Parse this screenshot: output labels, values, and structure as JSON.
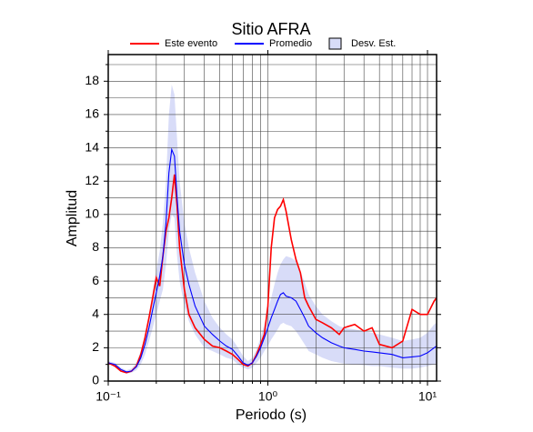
{
  "chart_data": {
    "type": "line",
    "title": "Sitio AFRA",
    "x_label": "Periodo (s)",
    "y_label": "Amplitud",
    "xscale": "log",
    "grid": true,
    "legend": "top",
    "xlim": [
      0.1,
      11.4
    ],
    "ylim": [
      0,
      19.6
    ],
    "xticks": [
      {
        "value": 0.1,
        "label": "10⁻¹"
      },
      {
        "value": 1,
        "label": "10⁰"
      },
      {
        "value": 10,
        "label": "10¹"
      }
    ],
    "xminorticks": [
      0.2,
      0.3,
      0.4,
      0.5,
      0.6,
      0.7,
      0.8,
      0.9,
      2,
      3,
      4,
      5,
      6,
      7,
      8,
      9
    ],
    "yticks": [
      0,
      2,
      4,
      6,
      8,
      10,
      12,
      14,
      16,
      18
    ],
    "yminorticks": [
      1,
      3,
      5,
      7,
      9,
      11,
      13,
      15,
      17,
      19
    ],
    "x": [
      0.1,
      0.11,
      0.12,
      0.13,
      0.14,
      0.15,
      0.16,
      0.17,
      0.18,
      0.19,
      0.2,
      0.21,
      0.22,
      0.23,
      0.24,
      0.25,
      0.26,
      0.27,
      0.28,
      0.3,
      0.32,
      0.35,
      0.4,
      0.45,
      0.5,
      0.55,
      0.6,
      0.65,
      0.7,
      0.75,
      0.8,
      0.85,
      0.9,
      0.95,
      1.0,
      1.05,
      1.1,
      1.15,
      1.2,
      1.25,
      1.3,
      1.4,
      1.5,
      1.6,
      1.7,
      1.8,
      2.0,
      2.2,
      2.5,
      2.8,
      3,
      3.5,
      4,
      4.5,
      5,
      6,
      7,
      8,
      9,
      10,
      11,
      11.4
    ],
    "band": {
      "name": "Desv. Est.",
      "color": "#d8dcf8",
      "upper": [
        1.2,
        1.1,
        0.8,
        0.65,
        0.75,
        1.1,
        1.8,
        2.8,
        4.0,
        5.4,
        6.6,
        7.8,
        9.5,
        12.0,
        16.0,
        17.8,
        17.2,
        14.5,
        12.0,
        9.5,
        8.0,
        6.5,
        4.8,
        3.8,
        3.2,
        2.8,
        2.5,
        2.0,
        1.5,
        1.2,
        1.4,
        1.9,
        2.6,
        3.4,
        4.3,
        5.0,
        5.8,
        6.5,
        7.0,
        7.3,
        7.5,
        7.4,
        7.2,
        6.6,
        5.9,
        5.2,
        4.5,
        4.0,
        3.6,
        3.3,
        3.2,
        3.1,
        3.0,
        2.9,
        2.8,
        2.6,
        2.4,
        2.5,
        2.6,
        2.9,
        3.4,
        3.5
      ],
      "lower": [
        1.0,
        0.9,
        0.6,
        0.45,
        0.5,
        0.65,
        1.0,
        1.6,
        2.4,
        3.2,
        4.0,
        4.8,
        5.5,
        7.0,
        9.0,
        10.0,
        9.8,
        7.5,
        6.0,
        4.5,
        3.6,
        2.8,
        2.0,
        1.8,
        1.6,
        1.4,
        1.3,
        1.0,
        0.8,
        0.7,
        0.8,
        1.1,
        1.4,
        1.8,
        2.1,
        2.5,
        2.8,
        3.1,
        3.4,
        3.5,
        3.4,
        3.3,
        3.0,
        2.6,
        2.2,
        1.8,
        1.6,
        1.4,
        1.2,
        1.1,
        1.05,
        1.0,
        0.95,
        0.9,
        0.9,
        0.8,
        0.75,
        0.75,
        0.8,
        0.9,
        1.0,
        1.1
      ]
    },
    "series": [
      {
        "name": "Este evento",
        "color": "#ff0000",
        "values": [
          1.1,
          0.9,
          0.6,
          0.5,
          0.6,
          0.9,
          1.6,
          2.6,
          3.8,
          5.0,
          6.2,
          5.7,
          7.5,
          9.0,
          9.8,
          11.0,
          12.4,
          10.5,
          8.0,
          5.5,
          4.0,
          3.2,
          2.5,
          2.1,
          2.0,
          1.8,
          1.6,
          1.3,
          1.0,
          0.9,
          1.1,
          1.6,
          2.2,
          2.8,
          4.5,
          8.0,
          9.8,
          10.3,
          10.5,
          10.9,
          10.2,
          8.5,
          7.3,
          6.5,
          5.0,
          4.5,
          3.7,
          3.5,
          3.2,
          2.8,
          3.2,
          3.4,
          3.0,
          3.2,
          2.2,
          2.0,
          2.4,
          4.3,
          4.0,
          4.0,
          4.8,
          5.0
        ]
      },
      {
        "name": "Promedio",
        "color": "#0000ff",
        "values": [
          1.1,
          1.0,
          0.7,
          0.55,
          0.6,
          0.85,
          1.4,
          2.2,
          3.2,
          4.3,
          5.3,
          6.3,
          7.5,
          9.5,
          12.5,
          13.9,
          13.5,
          11.0,
          9.0,
          7.0,
          5.8,
          4.5,
          3.3,
          2.8,
          2.4,
          2.1,
          1.9,
          1.5,
          1.1,
          0.95,
          1.1,
          1.5,
          2.0,
          2.6,
          3.2,
          3.8,
          4.3,
          4.8,
          5.2,
          5.3,
          5.1,
          5.0,
          4.8,
          4.3,
          3.8,
          3.3,
          2.9,
          2.6,
          2.3,
          2.1,
          2.0,
          1.9,
          1.8,
          1.75,
          1.7,
          1.6,
          1.4,
          1.45,
          1.5,
          1.7,
          2.0,
          2.1
        ]
      }
    ]
  }
}
